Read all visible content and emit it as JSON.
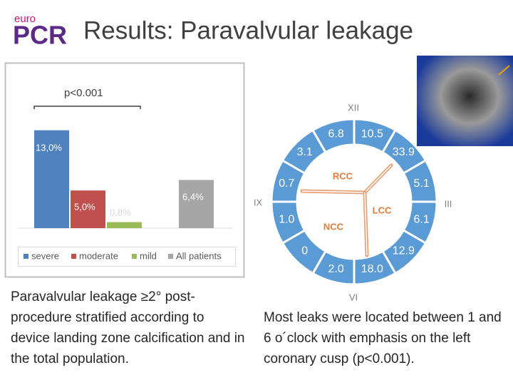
{
  "header": {
    "logo_small": "euro",
    "logo_big": "PCR",
    "title": "Results: Paravalvular leakage"
  },
  "chart_data": {
    "type": "bar",
    "categories": [
      "severe",
      "moderate",
      "mild",
      "All patients"
    ],
    "values": [
      13.0,
      5.0,
      0.8,
      6.4
    ],
    "value_labels": [
      "13,0%",
      "5,0%",
      "0,8%",
      "6,4%"
    ],
    "colors": [
      "#4f81bd",
      "#c0504d",
      "#9bbb59",
      "#a6a6a6"
    ],
    "ylim": [
      0,
      16
    ],
    "annotation": "p<0.001",
    "legend": "bottom"
  },
  "clock": {
    "hours": [
      "XII",
      "III",
      "VI",
      "IX"
    ],
    "segments": [
      "10.5",
      "33.9",
      "5.1",
      "6.1",
      "12.9",
      "18.0",
      "2.0",
      "0",
      "1.0",
      "0.7",
      "3.1",
      "6.8"
    ],
    "cusps": [
      "RCC",
      "LCC",
      "NCC"
    ]
  },
  "captions": [
    "Paravalvular leakage ≥2° post-procedure stratified according to device landing zone calcification and in the total population.",
    "Most leaks were located between 1 and 6 o´clock with emphasis on the left coronary cusp (p<0.001)."
  ]
}
